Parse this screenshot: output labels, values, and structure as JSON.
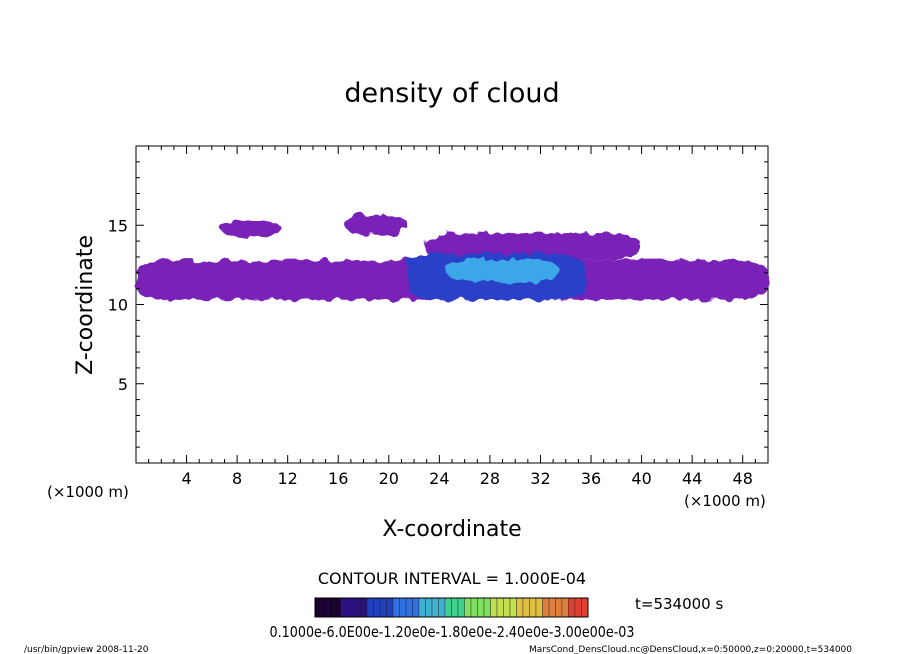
{
  "chart_data": {
    "type": "heatmap",
    "title": "density of cloud",
    "xlabel": "X-coordinate",
    "ylabel": "Z-coordinate",
    "x_unit_left": "(×1000 m)",
    "x_unit_right": "(×1000 m)",
    "xlim": [
      0,
      50
    ],
    "ylim": [
      0,
      20
    ],
    "x_ticks": [
      4,
      8,
      12,
      16,
      20,
      24,
      28,
      32,
      36,
      40,
      44,
      48
    ],
    "y_ticks": [
      5,
      10,
      15
    ],
    "contour_interval": "CONTOUR INTERVAL = 1.000E-04",
    "time_label": "t=534000 s",
    "colorbar_labels": "0.1000e-6.0E00e-1.20e0e-1.80e0e-2.40e0e-3.00e00e-03",
    "colorbar_colors": [
      "#1a0030",
      "#2a1080",
      "#2040c0",
      "#3070e0",
      "#40b0d0",
      "#40d090",
      "#80e060",
      "#c0e050",
      "#e0c040",
      "#e08040",
      "#e04030"
    ],
    "cloud_regions": [
      {
        "x0": 0,
        "x1": 50,
        "z0": 10.3,
        "z1": 12.8,
        "level": 1
      },
      {
        "x0": 6.7,
        "x1": 11.5,
        "z0": 14.3,
        "z1": 15.3,
        "level": 1
      },
      {
        "x0": 16.5,
        "x1": 21.5,
        "z0": 14.4,
        "z1": 15.7,
        "level": 1
      },
      {
        "x0": 22.8,
        "x1": 40,
        "z0": 12.8,
        "z1": 14.5,
        "level": 1
      },
      {
        "x0": 21.5,
        "x1": 35.5,
        "z0": 10.3,
        "z1": 13.2,
        "level": 3
      },
      {
        "x0": 24.5,
        "x1": 33.5,
        "z0": 11.4,
        "z1": 12.9,
        "level": 5
      }
    ],
    "grid": false
  },
  "footer": {
    "left": "/usr/bin/gpview   2008-11-20",
    "right": "MarsCond_DensCloud.nc@DensCloud,x=0:50000,z=0:20000,t=534000"
  }
}
